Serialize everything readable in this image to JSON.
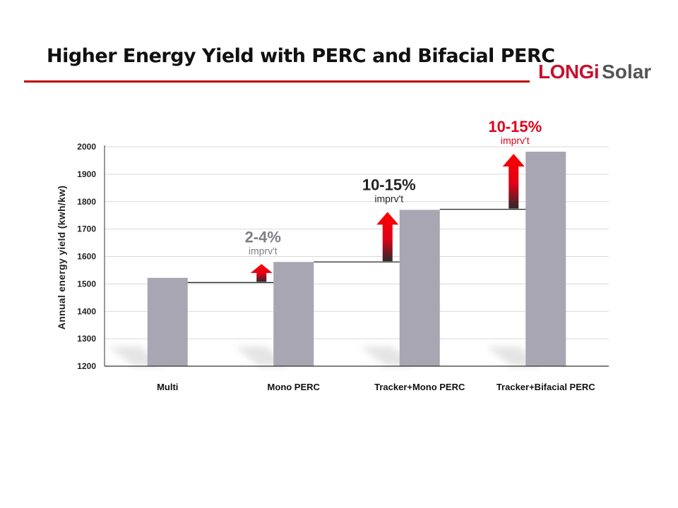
{
  "header": {
    "title": "Higher Energy Yield with PERC and Bifacial PERC",
    "logo_brand": "LONGi",
    "logo_sub": "Solar"
  },
  "colors": {
    "bar": "#a8a6b2",
    "accent_red": "#e0001b",
    "title_rule": "#c00000",
    "grid": "#d9d9d9"
  },
  "chart_data": {
    "type": "bar",
    "categories": [
      "Multi",
      "Mono PERC",
      "Tracker+Mono PERC",
      "Tracker+Bifacial PERC"
    ],
    "values": [
      1522,
      1580,
      1770,
      1982
    ],
    "ylabel": "Annual energy yield (kwh/kw)",
    "ylim": [
      1200,
      2000
    ],
    "yticks": [
      1200,
      1300,
      1400,
      1500,
      1600,
      1700,
      1800,
      1900,
      2000
    ],
    "grid": true,
    "annotations": [
      {
        "from": 1505,
        "to": 1580,
        "text": "2-4%",
        "subtext": "imprv't",
        "color": "#7f7f8a"
      },
      {
        "from": 1580,
        "to": 1770,
        "text": "10-15%",
        "subtext": "imprv't",
        "color": "#222222"
      },
      {
        "from": 1772,
        "to": 1982,
        "text": "10-15%",
        "subtext": "imprv't",
        "color": "#e0001b"
      }
    ]
  }
}
